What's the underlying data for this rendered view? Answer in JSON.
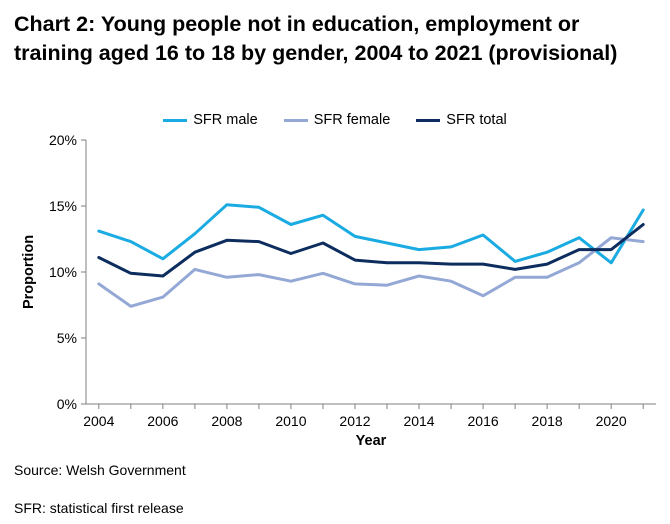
{
  "chart_data": {
    "type": "line",
    "title": "Chart 2: Young people not in education, employment or training aged 16 to 18 by gender, 2004 to 2021 (provisional)",
    "xlabel": "Year",
    "ylabel": "Proportion",
    "x": [
      2004,
      2005,
      2006,
      2007,
      2008,
      2009,
      2010,
      2011,
      2012,
      2013,
      2014,
      2015,
      2016,
      2017,
      2018,
      2019,
      2020,
      2021
    ],
    "xticks": [
      "2004",
      "2006",
      "2008",
      "2010",
      "2012",
      "2014",
      "2016",
      "2018",
      "2020"
    ],
    "yticks": [
      "0%",
      "5%",
      "10%",
      "15%",
      "20%"
    ],
    "ylim": [
      0,
      20
    ],
    "grid": false,
    "legend_position": "top",
    "series": [
      {
        "name": "SFR male",
        "color": "#1aabe2",
        "values": [
          13.1,
          12.3,
          11.0,
          12.9,
          15.1,
          14.9,
          13.6,
          14.3,
          12.7,
          12.2,
          11.7,
          11.9,
          12.8,
          10.8,
          11.5,
          12.6,
          10.7,
          14.7
        ]
      },
      {
        "name": "SFR female",
        "color": "#94a8d6",
        "values": [
          9.1,
          7.4,
          8.1,
          10.2,
          9.6,
          9.8,
          9.3,
          9.9,
          9.1,
          9.0,
          9.7,
          9.3,
          8.2,
          9.6,
          9.6,
          10.7,
          12.6,
          12.3
        ]
      },
      {
        "name": "SFR total",
        "color": "#0d2d5e",
        "values": [
          11.1,
          9.9,
          9.7,
          11.5,
          12.4,
          12.3,
          11.4,
          12.2,
          10.9,
          10.7,
          10.7,
          10.6,
          10.6,
          10.2,
          10.6,
          11.7,
          11.7,
          13.6
        ]
      }
    ]
  },
  "footnotes": {
    "source": "Source: Welsh Government",
    "note": "SFR: statistical first release"
  }
}
